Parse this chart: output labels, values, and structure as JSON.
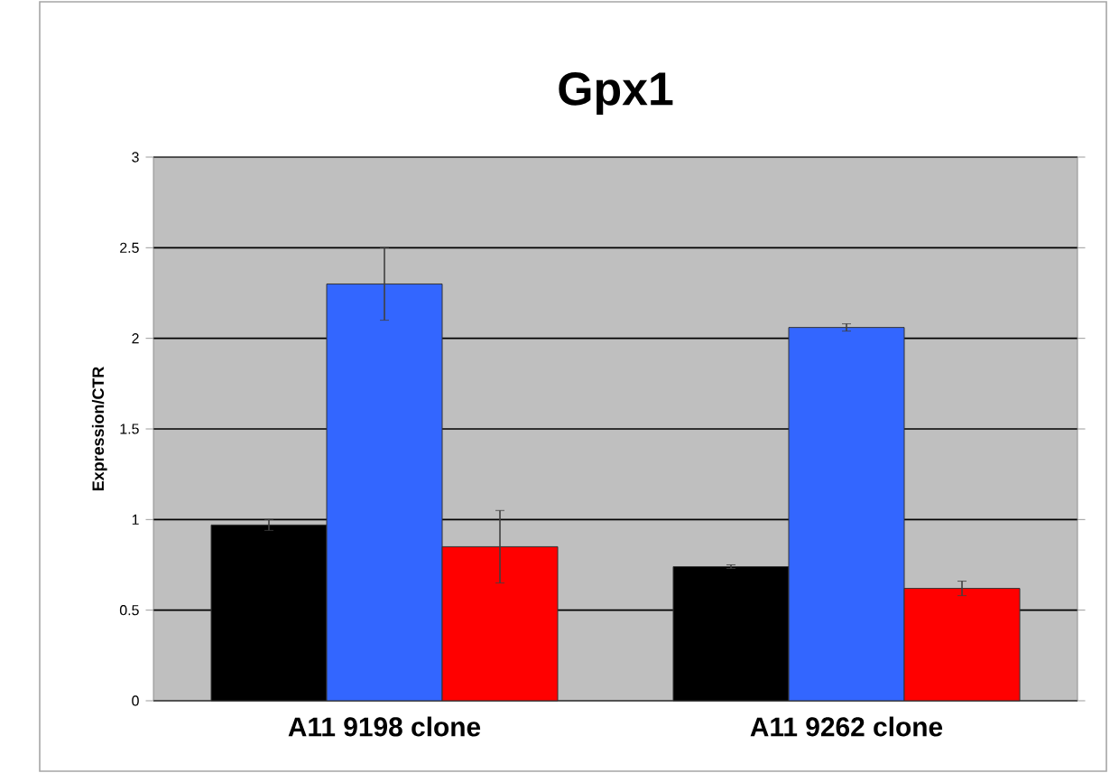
{
  "chart_data": {
    "type": "bar",
    "title": "Gpx1",
    "ylabel": "Expression/CTR",
    "categories": [
      "A11 9198 clone",
      "A11 9262 clone"
    ],
    "series": [
      {
        "color": "#000000",
        "values": [
          0.97,
          0.74
        ],
        "errors": [
          0.03,
          0.01
        ]
      },
      {
        "color": "#3366ff",
        "values": [
          2.3,
          2.06
        ],
        "errors": [
          0.2,
          0.02
        ]
      },
      {
        "color": "#ff0000",
        "values": [
          0.85,
          0.62
        ],
        "errors": [
          0.2,
          0.04
        ]
      }
    ],
    "ylim": [
      0,
      3
    ],
    "yticks": [
      0,
      0.5,
      1,
      1.5,
      2,
      2.5,
      3
    ],
    "grid": "y"
  }
}
